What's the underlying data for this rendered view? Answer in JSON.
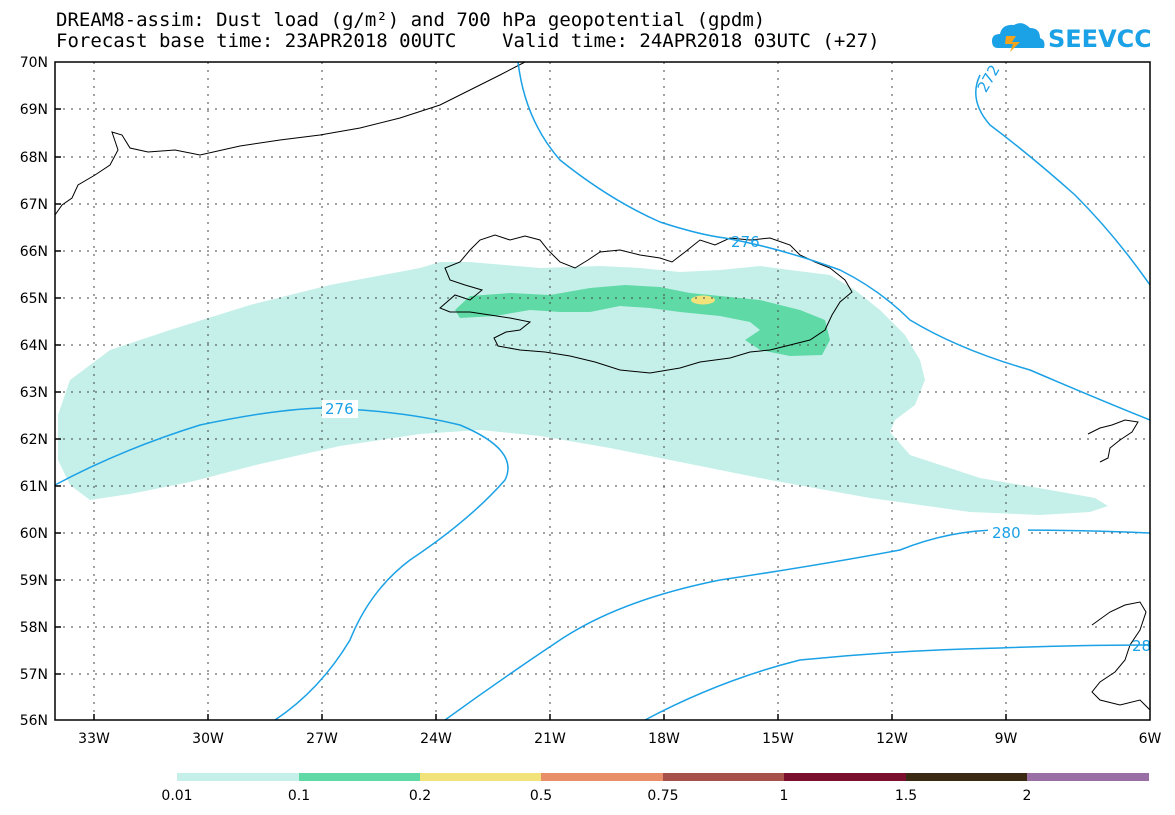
{
  "header": {
    "title_line1": "DREAM8-assim: Dust load (g/m²) and 700 hPa geopotential (gpdm)",
    "title_line2": "Forecast base time: 23APR2018 00UTC    Valid time: 24APR2018 03UTC (+27)"
  },
  "logo": {
    "text": "SEEVCCC",
    "icon": "cloud-logo-icon"
  },
  "map": {
    "lat_labels": [
      "70N",
      "69N",
      "68N",
      "67N",
      "66N",
      "65N",
      "64N",
      "63N",
      "62N",
      "61N",
      "60N",
      "59N",
      "58N",
      "57N",
      "56N"
    ],
    "lon_labels": [
      "33W",
      "30W",
      "27W",
      "24W",
      "21W",
      "18W",
      "15W",
      "12W",
      "9W",
      "6W"
    ],
    "contour_labels": [
      "276",
      "276",
      "272",
      "280",
      "28"
    ]
  },
  "colorbar": {
    "labels": [
      "0.01",
      "0.1",
      "0.2",
      "0.5",
      "0.75",
      "1",
      "1.5",
      "2"
    ],
    "colors": [
      "#c5f0e9",
      "#5fd9a5",
      "#f2e27a",
      "#e88f6a",
      "#a8504a",
      "#7a0f2e",
      "#3a2a14",
      "#9a6fa6"
    ]
  },
  "colors": {
    "contour": "#1ba1e6",
    "coast": "#000000",
    "dust_light": "#c5f0e9",
    "dust_mid": "#5fd9a5",
    "dust_high": "#f2e27a"
  }
}
